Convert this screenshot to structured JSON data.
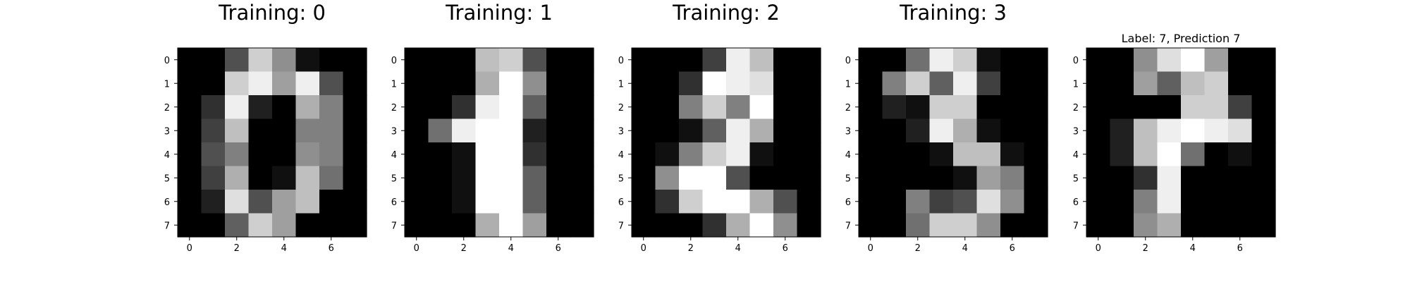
{
  "figure": {
    "background": "#ffffff"
  },
  "chart_data": [
    {
      "type": "heatmap",
      "title": "Training: 0",
      "xlabel": "",
      "ylabel": "",
      "colormap": "gray_r",
      "value_range": [
        0,
        16
      ],
      "x_ticks": [
        0,
        2,
        4,
        6
      ],
      "y_ticks": [
        0,
        1,
        2,
        3,
        4,
        5,
        6,
        7
      ],
      "values": [
        [
          0,
          0,
          5,
          13,
          9,
          1,
          0,
          0
        ],
        [
          0,
          0,
          13,
          15,
          10,
          15,
          5,
          0
        ],
        [
          0,
          3,
          15,
          2,
          0,
          11,
          8,
          0
        ],
        [
          0,
          4,
          12,
          0,
          0,
          8,
          8,
          0
        ],
        [
          0,
          5,
          8,
          0,
          0,
          9,
          8,
          0
        ],
        [
          0,
          4,
          11,
          0,
          1,
          12,
          7,
          0
        ],
        [
          0,
          2,
          14,
          5,
          10,
          12,
          0,
          0
        ],
        [
          0,
          0,
          6,
          13,
          10,
          0,
          0,
          0
        ]
      ]
    },
    {
      "type": "heatmap",
      "title": "Training: 1",
      "xlabel": "",
      "ylabel": "",
      "colormap": "gray_r",
      "value_range": [
        0,
        16
      ],
      "x_ticks": [
        0,
        2,
        4,
        6
      ],
      "y_ticks": [
        0,
        1,
        2,
        3,
        4,
        5,
        6,
        7
      ],
      "values": [
        [
          0,
          0,
          0,
          12,
          13,
          5,
          0,
          0
        ],
        [
          0,
          0,
          0,
          11,
          16,
          9,
          0,
          0
        ],
        [
          0,
          0,
          3,
          15,
          16,
          6,
          0,
          0
        ],
        [
          0,
          7,
          15,
          16,
          16,
          2,
          0,
          0
        ],
        [
          0,
          0,
          1,
          16,
          16,
          3,
          0,
          0
        ],
        [
          0,
          0,
          1,
          16,
          16,
          6,
          0,
          0
        ],
        [
          0,
          0,
          1,
          16,
          16,
          6,
          0,
          0
        ],
        [
          0,
          0,
          0,
          11,
          16,
          10,
          0,
          0
        ]
      ]
    },
    {
      "type": "heatmap",
      "title": "Training: 2",
      "xlabel": "",
      "ylabel": "",
      "colormap": "gray_r",
      "value_range": [
        0,
        16
      ],
      "x_ticks": [
        0,
        2,
        4,
        6
      ],
      "y_ticks": [
        0,
        1,
        2,
        3,
        4,
        5,
        6,
        7
      ],
      "values": [
        [
          0,
          0,
          0,
          4,
          15,
          12,
          0,
          0
        ],
        [
          0,
          0,
          3,
          16,
          15,
          14,
          0,
          0
        ],
        [
          0,
          0,
          8,
          13,
          8,
          16,
          0,
          0
        ],
        [
          0,
          0,
          1,
          6,
          15,
          11,
          0,
          0
        ],
        [
          0,
          1,
          8,
          13,
          15,
          1,
          0,
          0
        ],
        [
          0,
          9,
          16,
          16,
          5,
          0,
          0,
          0
        ],
        [
          0,
          3,
          13,
          16,
          16,
          11,
          5,
          0
        ],
        [
          0,
          0,
          0,
          3,
          11,
          16,
          9,
          0
        ]
      ]
    },
    {
      "type": "heatmap",
      "title": "Training: 3",
      "xlabel": "",
      "ylabel": "",
      "colormap": "gray_r",
      "value_range": [
        0,
        16
      ],
      "x_ticks": [
        0,
        2,
        4,
        6
      ],
      "y_ticks": [
        0,
        1,
        2,
        3,
        4,
        5,
        6,
        7
      ],
      "values": [
        [
          0,
          0,
          7,
          15,
          13,
          1,
          0,
          0
        ],
        [
          0,
          8,
          13,
          6,
          15,
          4,
          0,
          0
        ],
        [
          0,
          2,
          1,
          13,
          13,
          0,
          0,
          0
        ],
        [
          0,
          0,
          2,
          15,
          11,
          1,
          0,
          0
        ],
        [
          0,
          0,
          0,
          1,
          12,
          12,
          1,
          0
        ],
        [
          0,
          0,
          0,
          0,
          1,
          10,
          8,
          0
        ],
        [
          0,
          0,
          8,
          4,
          5,
          14,
          9,
          0
        ],
        [
          0,
          0,
          7,
          13,
          13,
          9,
          0,
          0
        ]
      ]
    },
    {
      "type": "heatmap",
      "title": "Label: 7, Prediction 7",
      "xlabel": "",
      "ylabel": "",
      "colormap": "gray_r",
      "value_range": [
        0,
        16
      ],
      "x_ticks": [
        0,
        2,
        4,
        6
      ],
      "y_ticks": [
        0,
        1,
        2,
        3,
        4,
        5,
        6,
        7
      ],
      "values": [
        [
          0,
          0,
          9,
          14,
          16,
          10,
          0,
          0
        ],
        [
          0,
          0,
          10,
          6,
          12,
          13,
          0,
          0
        ],
        [
          0,
          0,
          0,
          0,
          13,
          13,
          4,
          0
        ],
        [
          0,
          2,
          12,
          15,
          16,
          15,
          14,
          0
        ],
        [
          0,
          2,
          12,
          16,
          7,
          0,
          1,
          0
        ],
        [
          0,
          0,
          3,
          15,
          0,
          0,
          0,
          0
        ],
        [
          0,
          0,
          8,
          15,
          0,
          0,
          0,
          0
        ],
        [
          0,
          0,
          9,
          11,
          0,
          0,
          0,
          0
        ]
      ]
    }
  ]
}
